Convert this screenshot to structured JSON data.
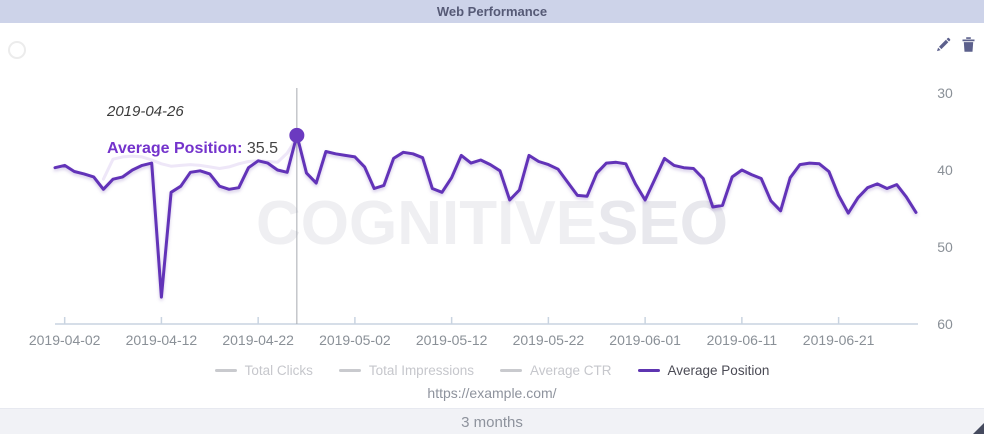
{
  "widget": {
    "title": "Web Performance",
    "url": "https://example.com/",
    "time_range": "3 months"
  },
  "tooltip": {
    "date": "2019-04-26",
    "label": "Average Position:",
    "value": "35.5"
  },
  "watermark": {
    "part1": "COGNITIVE",
    "part2": "SEO"
  },
  "colors": {
    "header_bg": "#cdd3e9",
    "header_text": "#565a76",
    "accent_purple": "#5e35b1",
    "line": "#6233b8",
    "dot": "#6b3ac0",
    "icon_slate": "#5c608c",
    "axis": "#c9d4e1",
    "tick_text": "#8a9097",
    "legend_inactive": "#c9cace",
    "crosshair": "#a6aab0",
    "footer_bg": "#f1f2f6",
    "watermark": "#efeff2"
  },
  "chart_data": {
    "type": "line",
    "title": "Web Performance",
    "x_start_date": "2019-04-01",
    "x_interval": "daily",
    "x_tick_labels": [
      "2019-04-02",
      "2019-04-12",
      "2019-04-22",
      "2019-05-02",
      "2019-05-12",
      "2019-05-22",
      "2019-06-01",
      "2019-06-11",
      "2019-06-21"
    ],
    "x_tick_day_indices": [
      1,
      11,
      21,
      31,
      41,
      51,
      61,
      71,
      81
    ],
    "y_ticks": [
      30,
      40,
      50,
      60
    ],
    "ylim": [
      30,
      60
    ],
    "y_axis": {
      "side": "right",
      "inverted": true
    },
    "grid": false,
    "legend_position": "bottom",
    "series": [
      {
        "name": "Average Position",
        "color": "#6233b8",
        "values": [
          39.7,
          39.4,
          40.2,
          40.5,
          40.9,
          42.5,
          41.2,
          40.9,
          40.0,
          39.4,
          39.1,
          56.5,
          42.9,
          42.1,
          40.3,
          40.1,
          40.5,
          42.1,
          42.5,
          42.3,
          39.7,
          38.8,
          39.1,
          40.0,
          40.3,
          35.5,
          40.4,
          41.7,
          37.6,
          37.9,
          38.1,
          38.3,
          39.6,
          42.4,
          42.0,
          38.5,
          37.7,
          37.9,
          38.4,
          42.4,
          42.9,
          41.0,
          38.1,
          39.1,
          38.7,
          39.3,
          40.1,
          43.9,
          42.6,
          38.1,
          38.9,
          39.3,
          39.9,
          41.6,
          43.3,
          43.4,
          40.4,
          39.1,
          39.0,
          39.2,
          41.8,
          43.9,
          41.2,
          38.5,
          39.4,
          39.7,
          39.8,
          41.1,
          44.8,
          44.6,
          40.9,
          40.0,
          40.6,
          41.1,
          44.0,
          45.3,
          41.0,
          39.3,
          39.1,
          39.2,
          40.2,
          43.3,
          45.6,
          43.6,
          42.3,
          41.8,
          42.4,
          41.9,
          43.5,
          45.5
        ]
      }
    ],
    "ghost_series": {
      "name": "faded-trace",
      "start_day_index": 5,
      "values": [
        41.2,
        38.6,
        38.3,
        38.2,
        38.3,
        38.7,
        39.2,
        39.5,
        39.4,
        39.3,
        39.4,
        39.6,
        39.8,
        39.6,
        39.2,
        38.9,
        38.8,
        38.9,
        39.0,
        37.8,
        35.8
      ]
    },
    "highlight_point": {
      "date": "2019-04-26",
      "day_index": 25,
      "value": 35.5
    },
    "legend": [
      {
        "label": "Total Clicks",
        "active": false
      },
      {
        "label": "Total Impressions",
        "active": false
      },
      {
        "label": "Average CTR",
        "active": false
      },
      {
        "label": "Average Position",
        "active": true
      }
    ]
  }
}
